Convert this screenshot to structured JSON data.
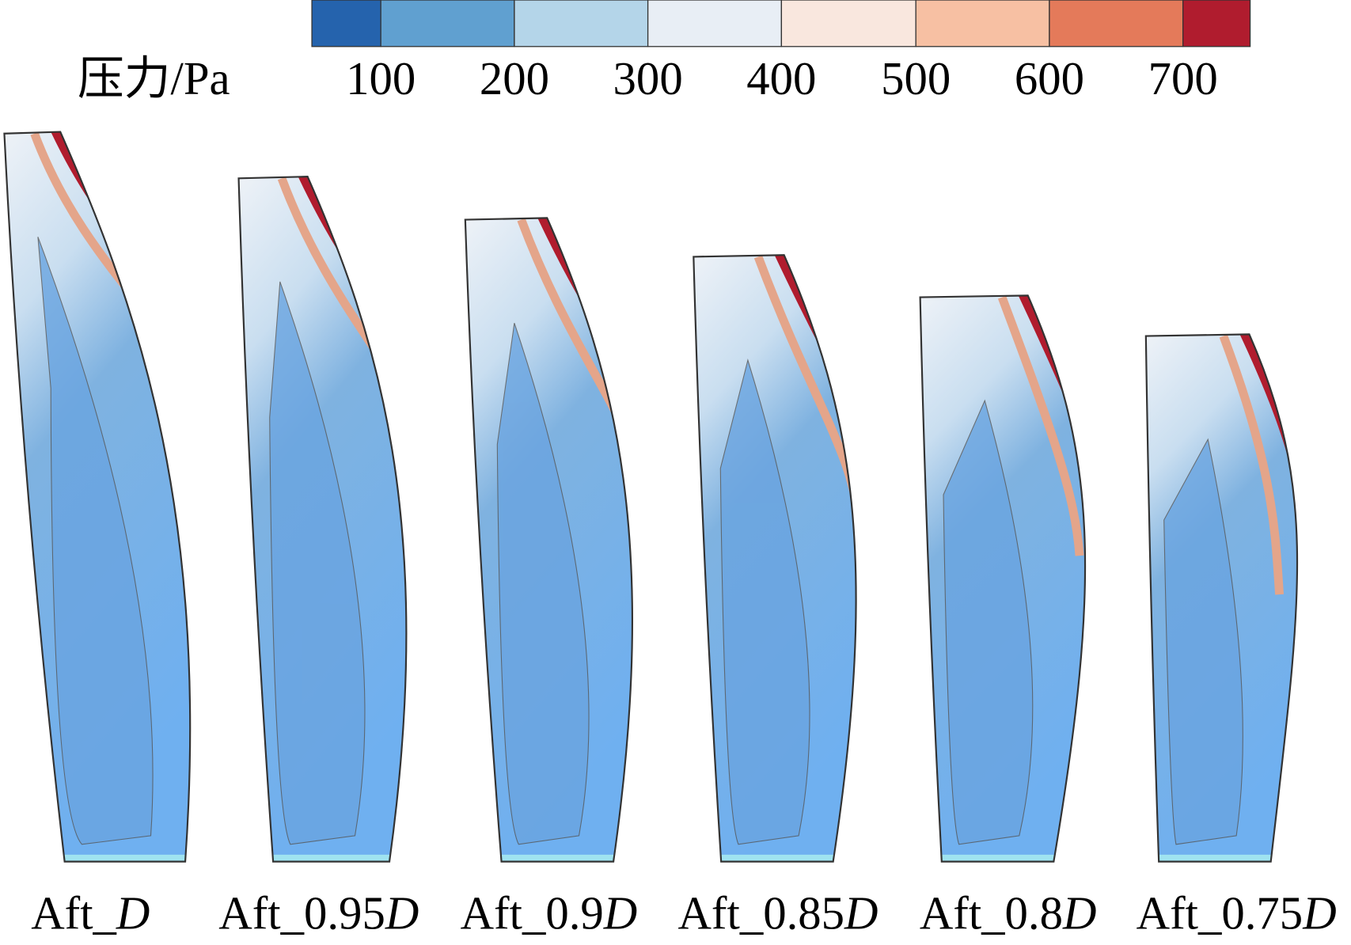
{
  "colorbar": {
    "label": "压力/Pa",
    "ticks": [
      100,
      200,
      300,
      400,
      500,
      600,
      700
    ],
    "colors": [
      "#2563ad",
      "#60a0d0",
      "#b4d5e9",
      "#e8eef5",
      "#f9e7de",
      "#f7c0a3",
      "#e47a5a",
      "#b01c2e"
    ]
  },
  "panels": [
    {
      "label": "Aft_D"
    },
    {
      "label": "Aft_0.95D"
    },
    {
      "label": "Aft_0.9D"
    },
    {
      "label": "Aft_0.85D"
    },
    {
      "label": "Aft_0.8D"
    },
    {
      "label": "Aft_0.75D"
    }
  ]
}
